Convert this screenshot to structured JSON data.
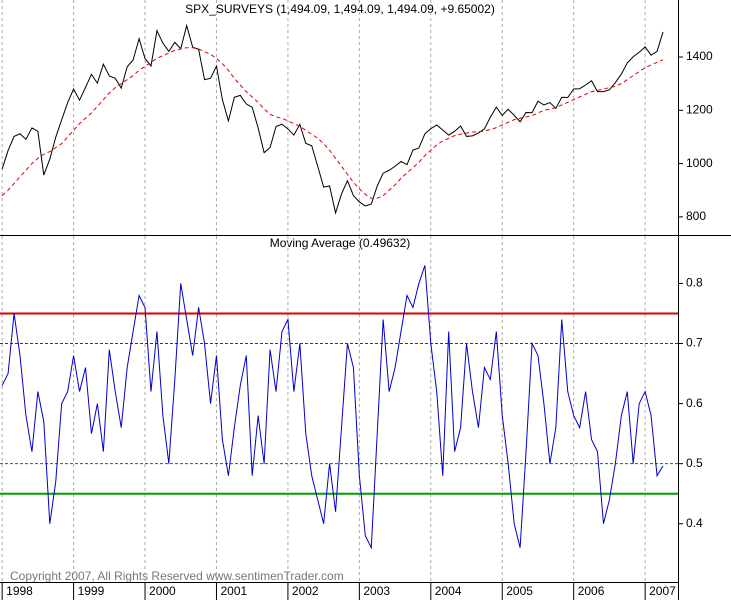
{
  "chart_data": [
    {
      "type": "line",
      "title": "SPX_SURVEYS (1,494.09, 1,494.09, 1,494.09, +9.65002)",
      "x": [
        1998,
        1998.083,
        1998.167,
        1998.25,
        1998.333,
        1998.417,
        1998.5,
        1998.583,
        1998.667,
        1998.75,
        1998.833,
        1998.917,
        1999,
        1999.083,
        1999.167,
        1999.25,
        1999.333,
        1999.417,
        1999.5,
        1999.583,
        1999.667,
        1999.75,
        1999.833,
        1999.917,
        2000,
        2000.083,
        2000.167,
        2000.25,
        2000.333,
        2000.417,
        2000.5,
        2000.583,
        2000.667,
        2000.75,
        2000.833,
        2000.917,
        2001,
        2001.083,
        2001.167,
        2001.25,
        2001.333,
        2001.417,
        2001.5,
        2001.583,
        2001.667,
        2001.75,
        2001.833,
        2001.917,
        2002,
        2002.083,
        2002.167,
        2002.25,
        2002.333,
        2002.417,
        2002.5,
        2002.583,
        2002.667,
        2002.75,
        2002.833,
        2002.917,
        2003,
        2003.083,
        2003.167,
        2003.25,
        2003.333,
        2003.417,
        2003.5,
        2003.583,
        2003.667,
        2003.75,
        2003.833,
        2003.917,
        2004,
        2004.083,
        2004.167,
        2004.25,
        2004.333,
        2004.417,
        2004.5,
        2004.583,
        2004.667,
        2004.75,
        2004.833,
        2004.917,
        2005,
        2005.083,
        2005.167,
        2005.25,
        2005.333,
        2005.417,
        2005.5,
        2005.583,
        2005.667,
        2005.75,
        2005.833,
        2005.917,
        2006,
        2006.083,
        2006.167,
        2006.25,
        2006.333,
        2006.417,
        2006.5,
        2006.583,
        2006.667,
        2006.75,
        2006.833,
        2006.917,
        2007,
        2007.083,
        2007.167,
        2007.25
      ],
      "series": [
        {
          "color": "#000000",
          "dash": false,
          "values": [
            980,
            1049,
            1102,
            1112,
            1091,
            1134,
            1121,
            957,
            1017,
            1099,
            1164,
            1229,
            1280,
            1238,
            1286,
            1335,
            1302,
            1373,
            1329,
            1320,
            1283,
            1363,
            1389,
            1469,
            1394,
            1366,
            1499,
            1452,
            1421,
            1455,
            1431,
            1518,
            1437,
            1429,
            1315,
            1320,
            1366,
            1240,
            1160,
            1249,
            1256,
            1224,
            1211,
            1134,
            1041,
            1060,
            1139,
            1148,
            1130,
            1107,
            1147,
            1076,
            1067,
            990,
            912,
            916,
            815,
            886,
            936,
            880,
            856,
            841,
            848,
            916,
            964,
            975,
            990,
            1008,
            996,
            1051,
            1058,
            1112,
            1131,
            1145,
            1126,
            1107,
            1121,
            1141,
            1102,
            1104,
            1115,
            1130,
            1174,
            1212,
            1181,
            1204,
            1181,
            1157,
            1192,
            1191,
            1234,
            1220,
            1229,
            1207,
            1249,
            1248,
            1280,
            1281,
            1295,
            1311,
            1270,
            1270,
            1277,
            1304,
            1336,
            1378,
            1401,
            1418,
            1438,
            1407,
            1421,
            1494.09
          ]
        },
        {
          "color": "#e00000",
          "dash": true,
          "values": [
            880,
            900,
            925,
            950,
            975,
            1000,
            1020,
            1035,
            1045,
            1060,
            1075,
            1100,
            1125,
            1150,
            1170,
            1190,
            1215,
            1240,
            1265,
            1285,
            1300,
            1315,
            1330,
            1350,
            1365,
            1380,
            1395,
            1405,
            1415,
            1425,
            1430,
            1435,
            1435,
            1430,
            1420,
            1410,
            1395,
            1375,
            1350,
            1320,
            1295,
            1270,
            1250,
            1230,
            1205,
            1185,
            1175,
            1170,
            1160,
            1150,
            1140,
            1125,
            1110,
            1095,
            1075,
            1050,
            1020,
            990,
            960,
            930,
            905,
            885,
            870,
            870,
            880,
            900,
            920,
            945,
            965,
            985,
            1005,
            1030,
            1050,
            1070,
            1085,
            1095,
            1105,
            1110,
            1115,
            1118,
            1120,
            1122,
            1128,
            1135,
            1145,
            1155,
            1165,
            1170,
            1175,
            1180,
            1190,
            1200,
            1205,
            1210,
            1220,
            1230,
            1240,
            1250,
            1260,
            1270,
            1275,
            1280,
            1285,
            1290,
            1300,
            1315,
            1330,
            1345,
            1360,
            1370,
            1380,
            1390
          ]
        }
      ],
      "xlim": [
        1997.97,
        2007.46
      ],
      "xticks": [
        1998,
        1999,
        2000,
        2001,
        2002,
        2003,
        2004,
        2005,
        2006,
        2007
      ],
      "ylim": [
        732,
        1614
      ],
      "yticks": [
        800,
        1000,
        1200,
        1400
      ]
    },
    {
      "type": "line",
      "title": "Moving Average (0.49632)",
      "x": [
        1998,
        1998.083,
        1998.167,
        1998.25,
        1998.333,
        1998.417,
        1998.5,
        1998.583,
        1998.667,
        1998.75,
        1998.833,
        1998.917,
        1999,
        1999.083,
        1999.167,
        1999.25,
        1999.333,
        1999.417,
        1999.5,
        1999.583,
        1999.667,
        1999.75,
        1999.833,
        1999.917,
        2000,
        2000.083,
        2000.167,
        2000.25,
        2000.333,
        2000.417,
        2000.5,
        2000.583,
        2000.667,
        2000.75,
        2000.833,
        2000.917,
        2001,
        2001.083,
        2001.167,
        2001.25,
        2001.333,
        2001.417,
        2001.5,
        2001.583,
        2001.667,
        2001.75,
        2001.833,
        2001.917,
        2002,
        2002.083,
        2002.167,
        2002.25,
        2002.333,
        2002.417,
        2002.5,
        2002.583,
        2002.667,
        2002.75,
        2002.833,
        2002.917,
        2003,
        2003.083,
        2003.167,
        2003.25,
        2003.333,
        2003.417,
        2003.5,
        2003.583,
        2003.667,
        2003.75,
        2003.833,
        2003.917,
        2004,
        2004.083,
        2004.167,
        2004.25,
        2004.333,
        2004.417,
        2004.5,
        2004.583,
        2004.667,
        2004.75,
        2004.833,
        2004.917,
        2005,
        2005.083,
        2005.167,
        2005.25,
        2005.333,
        2005.417,
        2005.5,
        2005.583,
        2005.667,
        2005.75,
        2005.833,
        2005.917,
        2006,
        2006.083,
        2006.167,
        2006.25,
        2006.333,
        2006.417,
        2006.5,
        2006.583,
        2006.667,
        2006.75,
        2006.833,
        2006.917,
        2007,
        2007.083,
        2007.167,
        2007.25
      ],
      "series": [
        {
          "color": "#0000cc",
          "dash": false,
          "values": [
            0.63,
            0.65,
            0.75,
            0.68,
            0.58,
            0.52,
            0.62,
            0.57,
            0.4,
            0.47,
            0.6,
            0.62,
            0.68,
            0.62,
            0.66,
            0.55,
            0.6,
            0.52,
            0.69,
            0.62,
            0.56,
            0.66,
            0.72,
            0.78,
            0.76,
            0.62,
            0.72,
            0.58,
            0.5,
            0.64,
            0.8,
            0.74,
            0.68,
            0.76,
            0.7,
            0.6,
            0.68,
            0.54,
            0.48,
            0.56,
            0.63,
            0.68,
            0.48,
            0.58,
            0.5,
            0.69,
            0.62,
            0.72,
            0.74,
            0.62,
            0.7,
            0.55,
            0.48,
            0.44,
            0.4,
            0.5,
            0.42,
            0.56,
            0.7,
            0.66,
            0.48,
            0.38,
            0.36,
            0.55,
            0.74,
            0.62,
            0.66,
            0.72,
            0.78,
            0.76,
            0.8,
            0.83,
            0.7,
            0.62,
            0.48,
            0.72,
            0.52,
            0.56,
            0.7,
            0.62,
            0.56,
            0.66,
            0.64,
            0.72,
            0.58,
            0.5,
            0.4,
            0.36,
            0.52,
            0.7,
            0.68,
            0.6,
            0.5,
            0.56,
            0.74,
            0.62,
            0.58,
            0.56,
            0.62,
            0.54,
            0.52,
            0.4,
            0.44,
            0.5,
            0.58,
            0.62,
            0.5,
            0.6,
            0.62,
            0.58,
            0.48,
            0.49632
          ]
        }
      ],
      "reference_lines": [
        {
          "value": 0.75,
          "color": "#e00000",
          "dash": false
        },
        {
          "value": 0.7,
          "color": "#c00000",
          "dash": true
        },
        {
          "value": 0.5,
          "color": "#008000",
          "dash": true
        },
        {
          "value": 0.45,
          "color": "#00a000",
          "dash": false
        }
      ],
      "annotation": "Copyright 2007, All Rights Reserved  www.sentimenTrader.com",
      "xlim": [
        1997.97,
        2007.46
      ],
      "xticks": [
        1998,
        1999,
        2000,
        2001,
        2002,
        2003,
        2004,
        2005,
        2006,
        2007
      ],
      "ylim": [
        0.303,
        0.879
      ],
      "yticks": [
        0.4,
        0.5,
        0.6,
        0.7,
        0.8
      ]
    }
  ]
}
